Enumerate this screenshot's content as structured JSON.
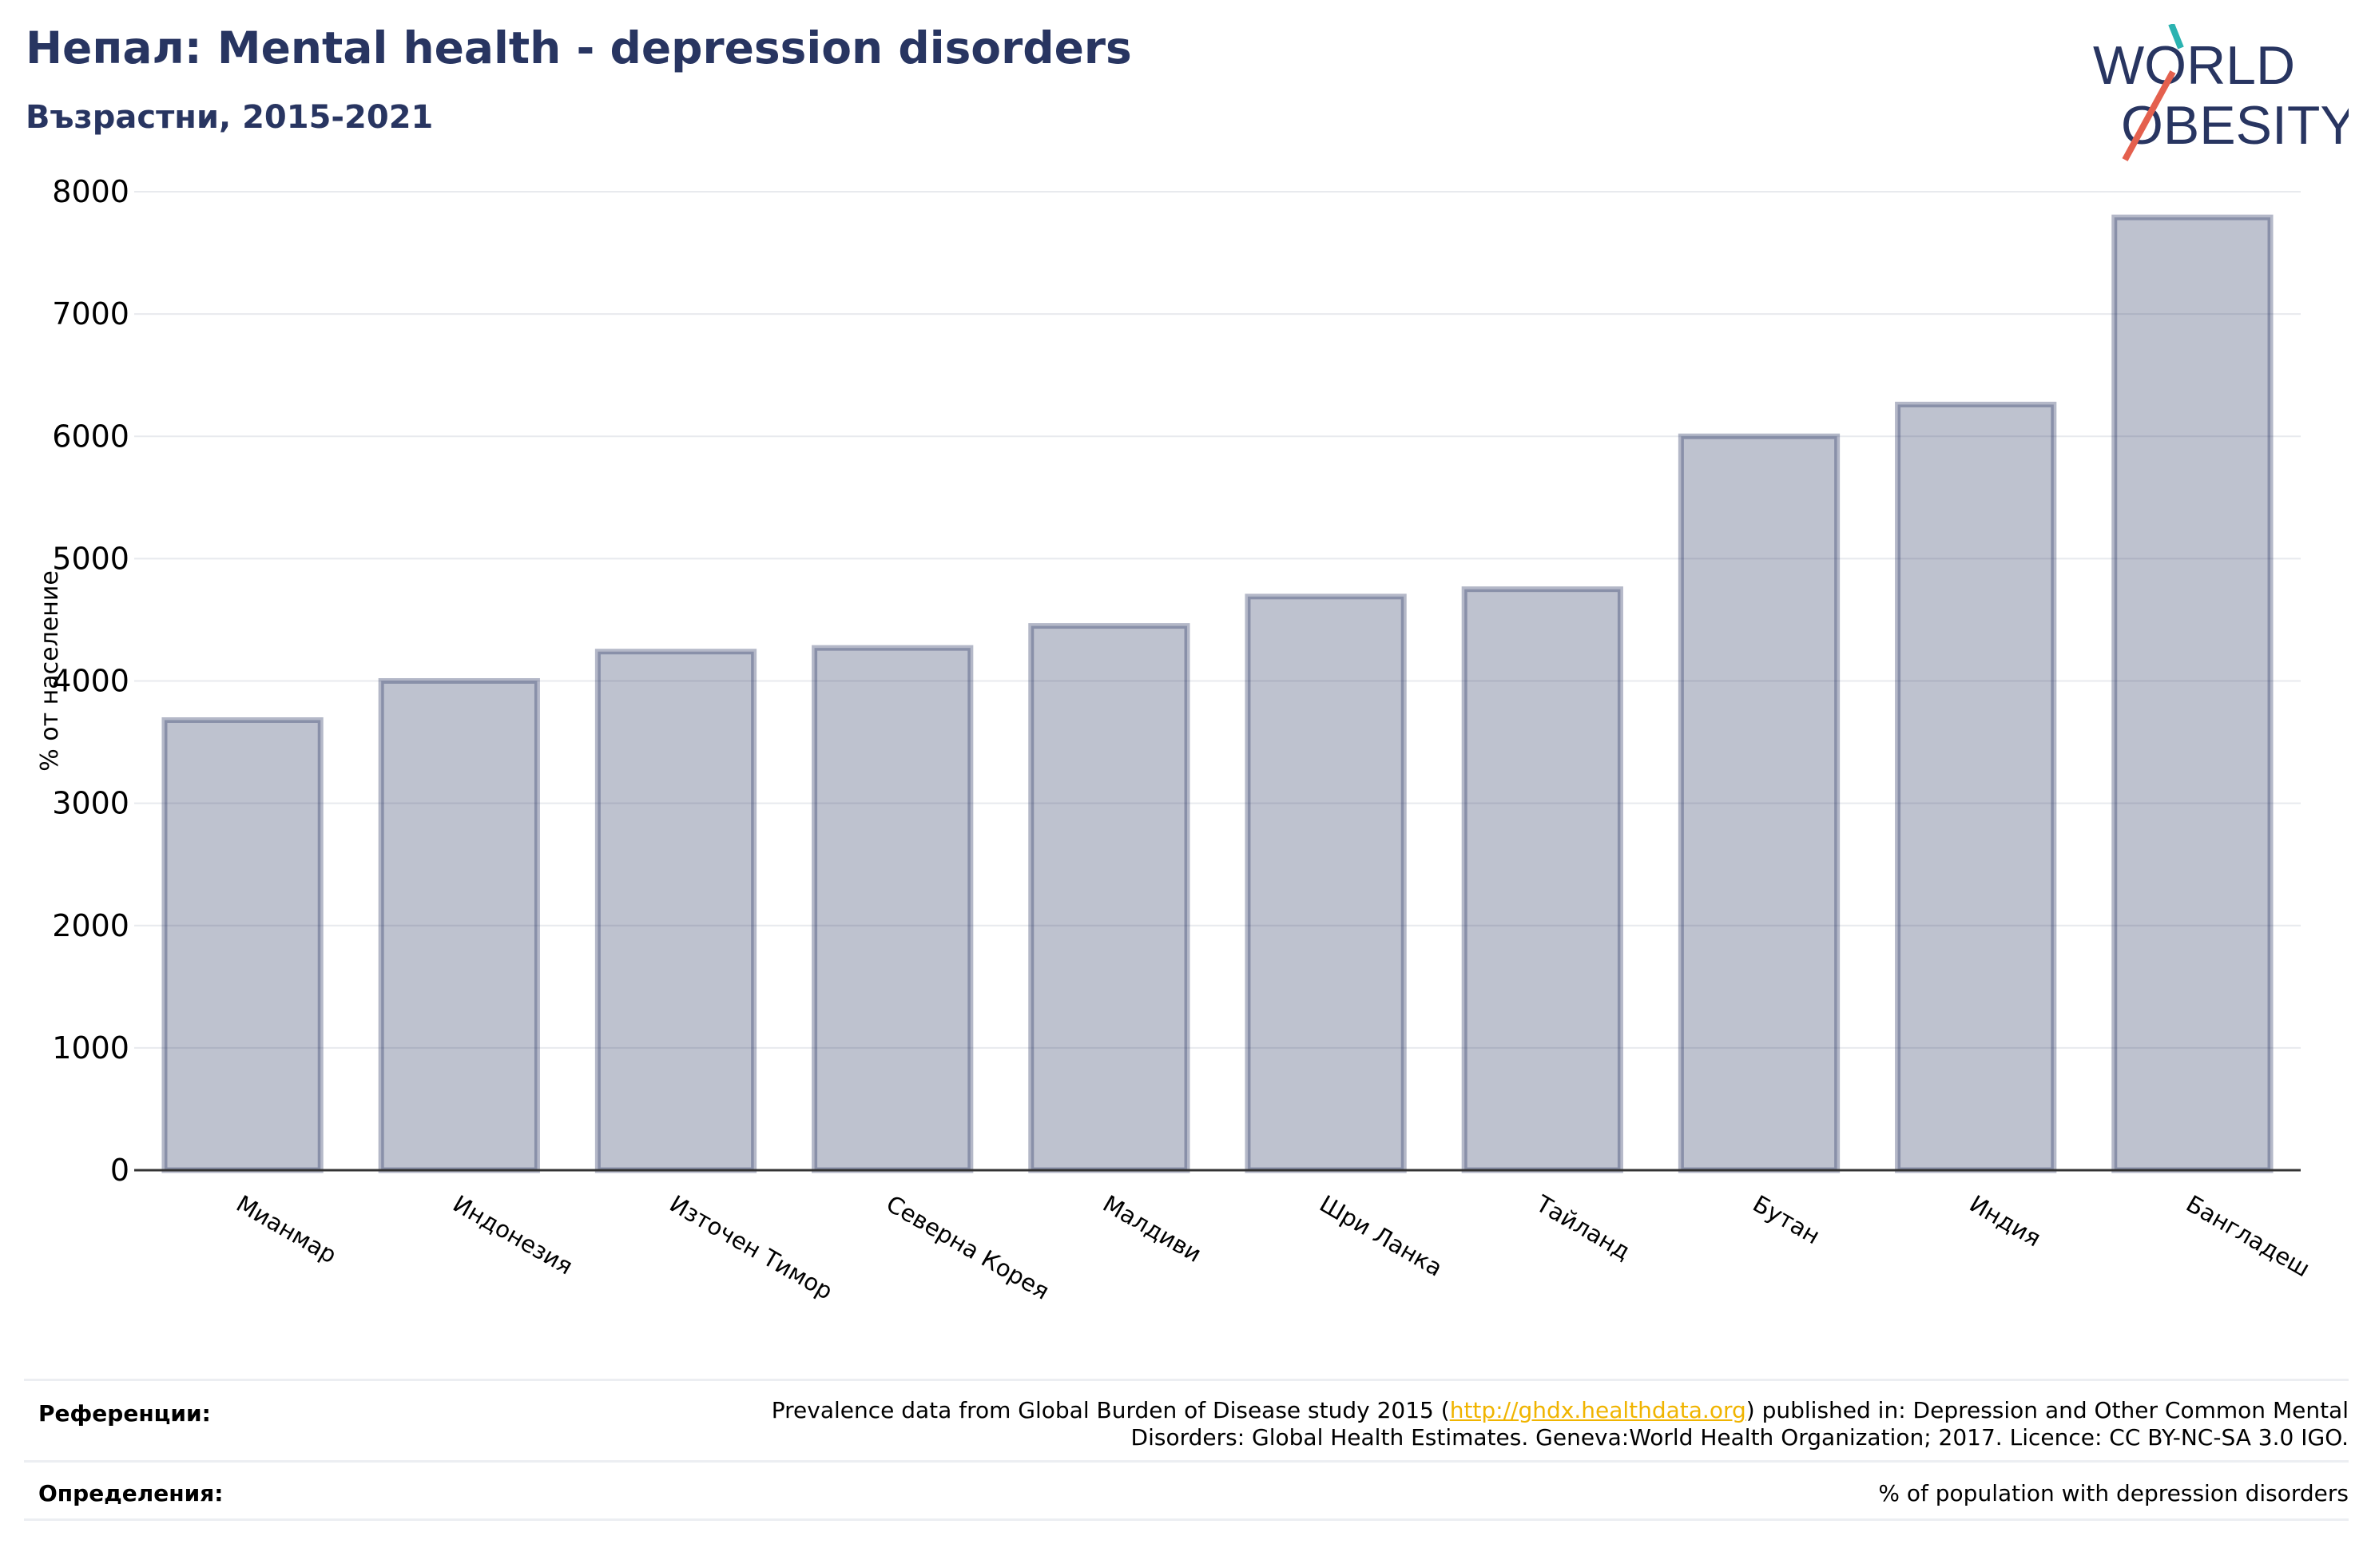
{
  "header": {
    "title": "Непал: Mental health - depression disorders",
    "subtitle": "Възрастни, 2015-2021"
  },
  "logo": {
    "line1": "WORLD",
    "line2": "OBESITY"
  },
  "chart_data": {
    "type": "bar",
    "ylabel": "% от население",
    "ylim": [
      0,
      8000
    ],
    "yticks": [
      0,
      1000,
      2000,
      3000,
      4000,
      5000,
      6000,
      7000,
      8000
    ],
    "grid": true,
    "bar_color": "#283561",
    "categories": [
      "Мианмар",
      "Индонезия",
      "Източен Тимор",
      "Северна Корея",
      "Малдиви",
      "Шри Ланка",
      "Тайланд",
      "Бутан",
      "Индия",
      "Бангладеш"
    ],
    "values": [
      3680,
      4000,
      4240,
      4270,
      4450,
      4690,
      4750,
      6000,
      6260,
      7790
    ]
  },
  "footer": {
    "references_label": "Референции:",
    "references_pre": "Prevalence data from Global Burden of Disease study 2015 (",
    "references_link": "http://ghdx.healthdata.org",
    "references_post": ") published in: Depression and Other Common Mental",
    "references_line2": "Disorders: Global Health Estimates. Geneva:World Health Organization; 2017. Licence: CC BY-NC-SA 3.0 IGO.",
    "definitions_label": "Определения:",
    "definitions_text": "% of population with depression disorders"
  },
  "colors": {
    "title": "#283561",
    "link": "#f0b400",
    "logo_teal": "#2bb3b1",
    "logo_red": "#e4604e"
  }
}
